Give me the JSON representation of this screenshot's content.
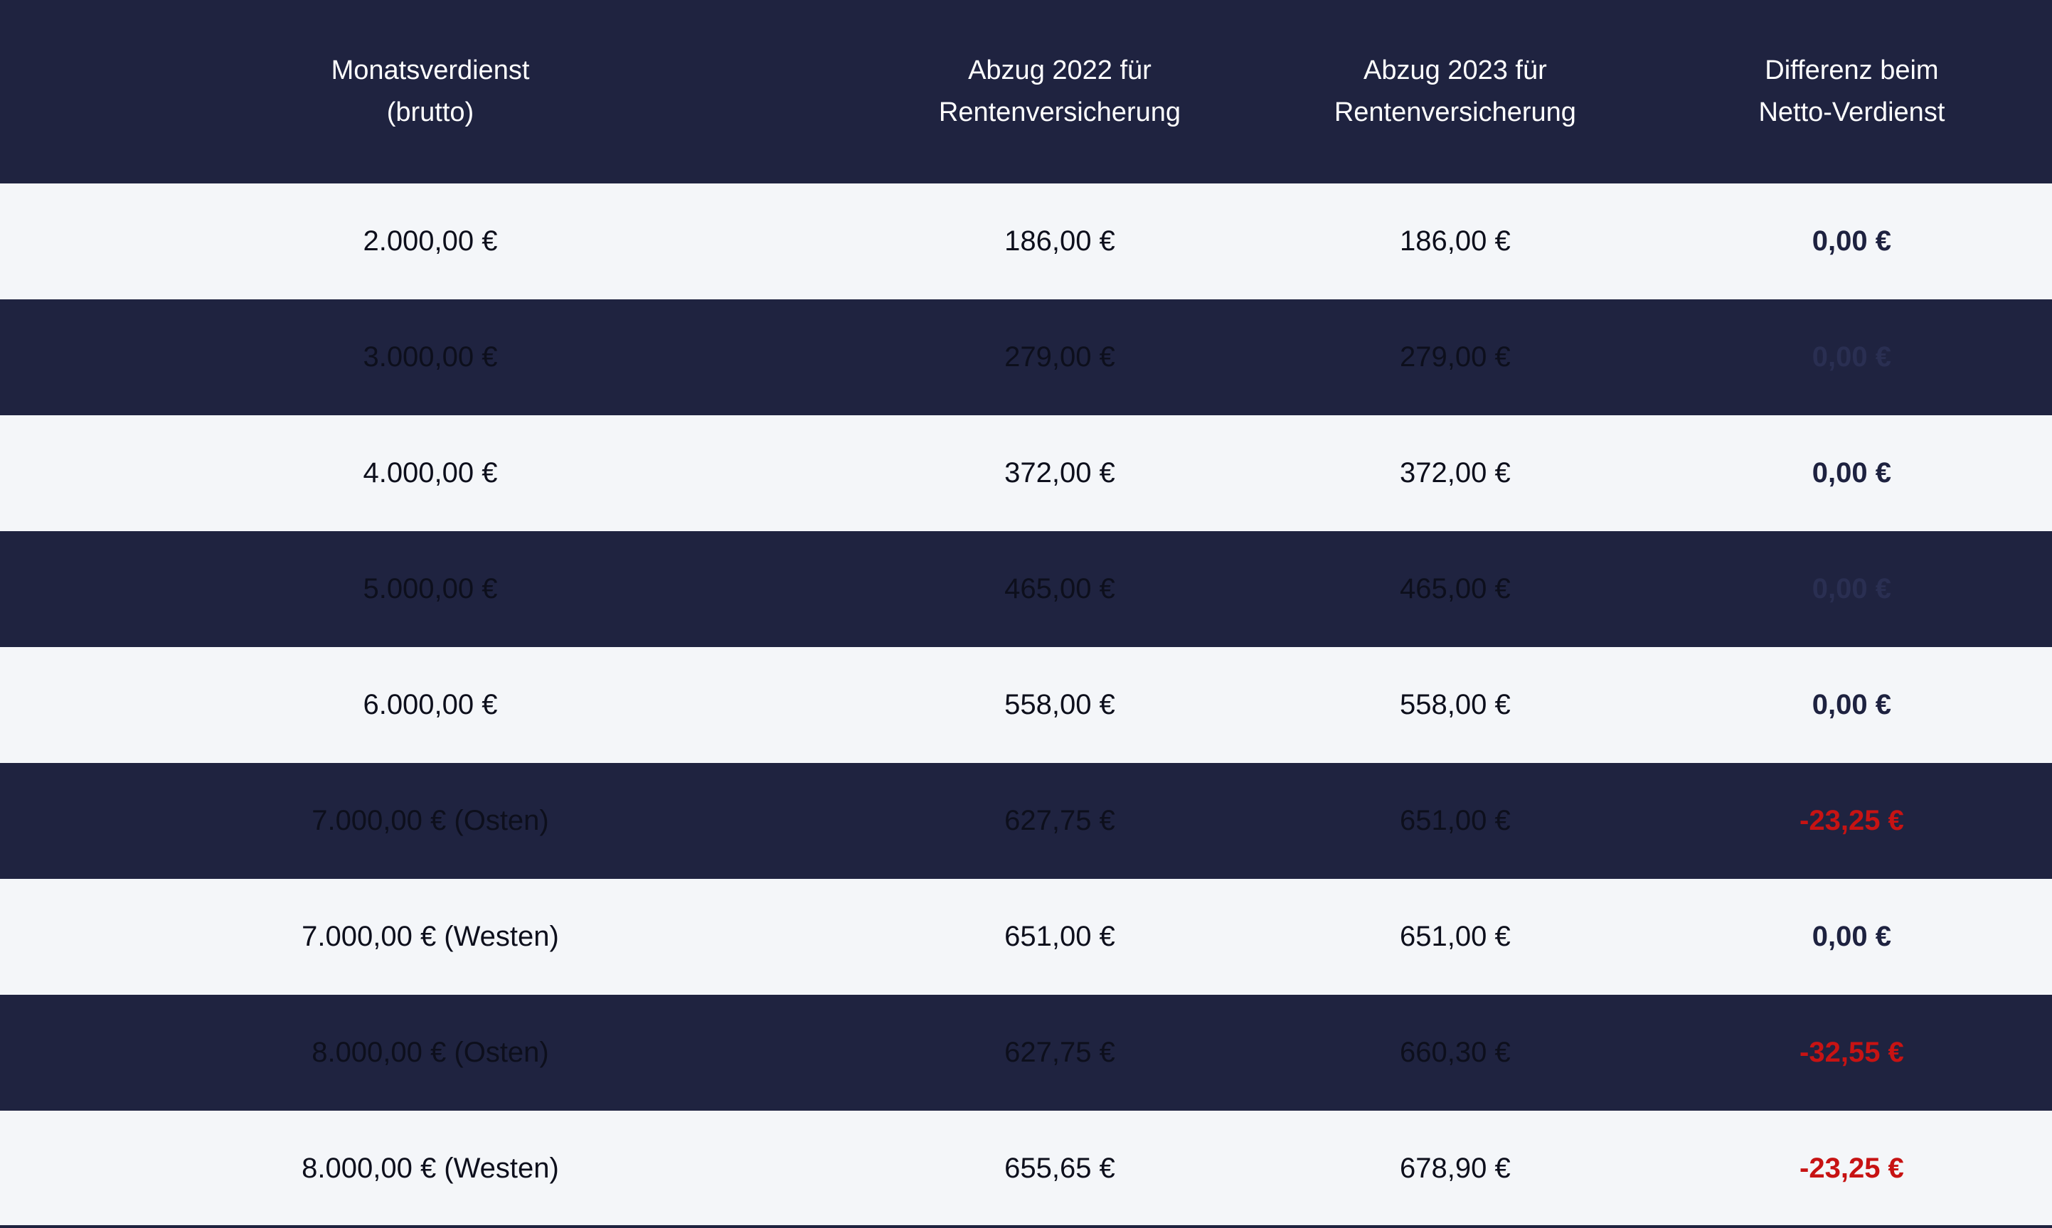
{
  "colors": {
    "header_bg": "#1f2340",
    "header_text": "#ffffff",
    "row_light_bg": "#f4f6f9",
    "row_dark_bg": "#1f2340",
    "cell_text": "#0d0f1c",
    "diff_zero": "#1e2240",
    "diff_zero_on_dark": "#2a2f52",
    "negative": "#c71313"
  },
  "table": {
    "headers": [
      "Monatsverdienst\n(brutto)",
      "Abzug 2022 für\nRentenversicherung",
      "Abzug 2023 für\nRentenversicherung",
      "Differenz beim\nNetto-Verdienst"
    ],
    "rows": [
      {
        "brutto": "2.000,00 €",
        "abzug2022": "186,00 €",
        "abzug2023": "186,00 €",
        "differenz": "0,00 €",
        "tone": "light",
        "diff_state": "zero"
      },
      {
        "brutto": "3.000,00 €",
        "abzug2022": "279,00 €",
        "abzug2023": "279,00 €",
        "differenz": "0,00 €",
        "tone": "dark",
        "diff_state": "zero"
      },
      {
        "brutto": "4.000,00 €",
        "abzug2022": "372,00 €",
        "abzug2023": "372,00 €",
        "differenz": "0,00 €",
        "tone": "light",
        "diff_state": "zero"
      },
      {
        "brutto": "5.000,00 €",
        "abzug2022": "465,00 €",
        "abzug2023": "465,00 €",
        "differenz": "0,00 €",
        "tone": "dark",
        "diff_state": "zero"
      },
      {
        "brutto": "6.000,00 €",
        "abzug2022": "558,00 €",
        "abzug2023": "558,00 €",
        "differenz": "0,00 €",
        "tone": "light",
        "diff_state": "zero"
      },
      {
        "brutto": "7.000,00 € (Osten)",
        "abzug2022": "627,75 €",
        "abzug2023": "651,00 €",
        "differenz": "-23,25 €",
        "tone": "dark",
        "diff_state": "negative"
      },
      {
        "brutto": "7.000,00 € (Westen)",
        "abzug2022": "651,00 €",
        "abzug2023": "651,00 €",
        "differenz": "0,00 €",
        "tone": "light",
        "diff_state": "zero"
      },
      {
        "brutto": "8.000,00 € (Osten)",
        "abzug2022": "627,75 €",
        "abzug2023": "660,30 €",
        "differenz": "-32,55 €",
        "tone": "dark",
        "diff_state": "negative"
      },
      {
        "brutto": "8.000,00 € (Westen)",
        "abzug2022": "655,65 €",
        "abzug2023": "678,90 €",
        "differenz": "-23,25 €",
        "tone": "light",
        "diff_state": "negative"
      }
    ]
  },
  "chart_data": {
    "type": "table",
    "title": "",
    "columns": [
      "Monatsverdienst (brutto)",
      "Abzug 2022 für Rentenversicherung",
      "Abzug 2023 für Rentenversicherung",
      "Differenz beim Netto-Verdienst"
    ],
    "rows": [
      [
        "2.000,00 €",
        "186,00 €",
        "186,00 €",
        "0,00 €"
      ],
      [
        "3.000,00 €",
        "279,00 €",
        "279,00 €",
        "0,00 €"
      ],
      [
        "4.000,00 €",
        "372,00 €",
        "372,00 €",
        "0,00 €"
      ],
      [
        "5.000,00 €",
        "465,00 €",
        "465,00 €",
        "0,00 €"
      ],
      [
        "6.000,00 €",
        "558,00 €",
        "558,00 €",
        "0,00 €"
      ],
      [
        "7.000,00 € (Osten)",
        "627,75 €",
        "651,00 €",
        "-23,25 €"
      ],
      [
        "7.000,00 € (Westen)",
        "651,00 €",
        "651,00 €",
        "0,00 €"
      ],
      [
        "8.000,00 € (Osten)",
        "627,75 €",
        "660,30 €",
        "-32,55 €"
      ],
      [
        "8.000,00 € (Westen)",
        "655,65 €",
        "678,90 €",
        "-23,25 €"
      ]
    ],
    "layout_hints": {
      "alternating_row_tones": [
        "light",
        "dark"
      ],
      "negative_values_color": "#c71313",
      "diff_column_bold": true
    }
  }
}
